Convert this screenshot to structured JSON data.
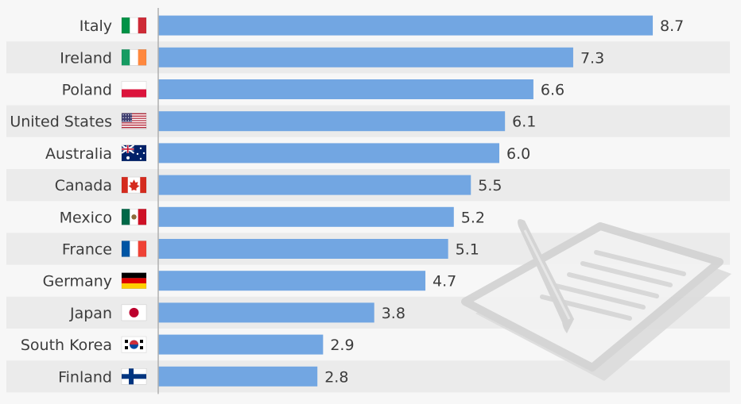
{
  "chart_data": {
    "type": "bar",
    "orientation": "horizontal",
    "categories": [
      "Italy",
      "Ireland",
      "Poland",
      "United States",
      "Australia",
      "Canada",
      "Mexico",
      "France",
      "Germany",
      "Japan",
      "South Korea",
      "Finland"
    ],
    "values": [
      8.7,
      7.3,
      6.6,
      6.1,
      6.0,
      5.5,
      5.2,
      5.1,
      4.7,
      3.8,
      2.9,
      2.8
    ],
    "value_labels": [
      "8.7",
      "7.3",
      "6.6",
      "6.1",
      "6.0",
      "5.5",
      "5.2",
      "5.1",
      "4.7",
      "3.8",
      "2.9",
      "2.8"
    ],
    "flags": [
      "italy-flag",
      "ireland-flag",
      "poland-flag",
      "united-states-flag",
      "australia-flag",
      "canada-flag",
      "mexico-flag",
      "france-flag",
      "germany-flag",
      "japan-flag",
      "south-korea-flag",
      "finland-flag"
    ],
    "xlim": [
      0,
      10
    ],
    "title": "",
    "xlabel": "",
    "ylabel": "",
    "grid": false,
    "colors": {
      "bar": "#72a6e2",
      "band": "#ebebeb",
      "background": "#f7f7f7",
      "text": "#3c3c3c",
      "axis": "#b0b0b0"
    }
  }
}
